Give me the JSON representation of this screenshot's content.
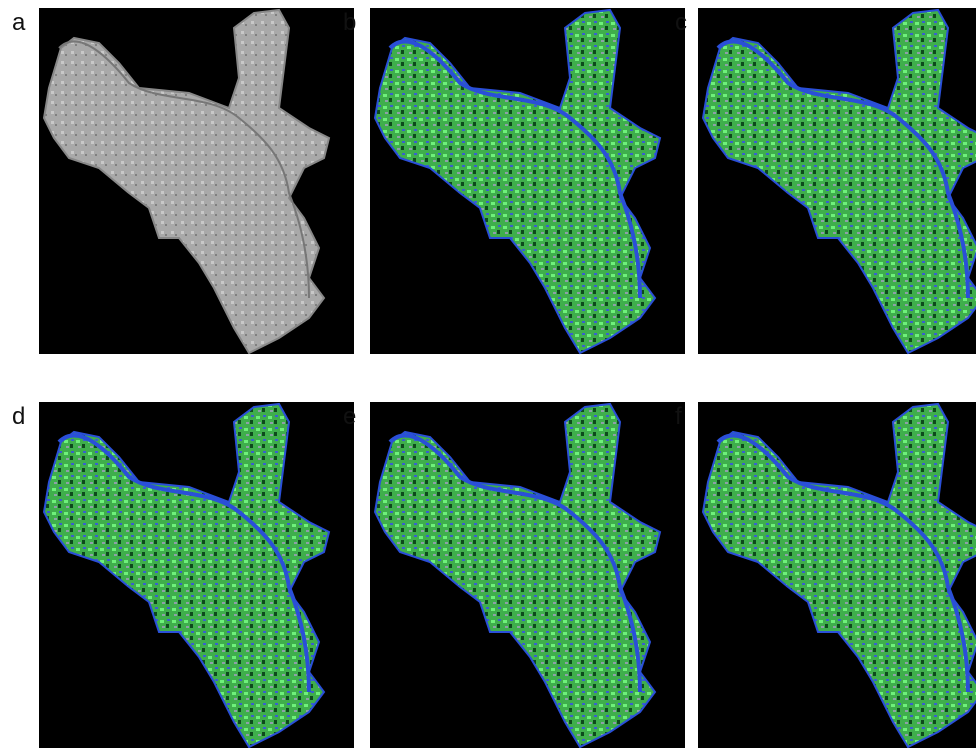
{
  "panels": [
    {
      "label": "a"
    },
    {
      "label": "b"
    },
    {
      "label": "c"
    },
    {
      "label": "d"
    },
    {
      "label": "e"
    },
    {
      "label": "f"
    }
  ]
}
